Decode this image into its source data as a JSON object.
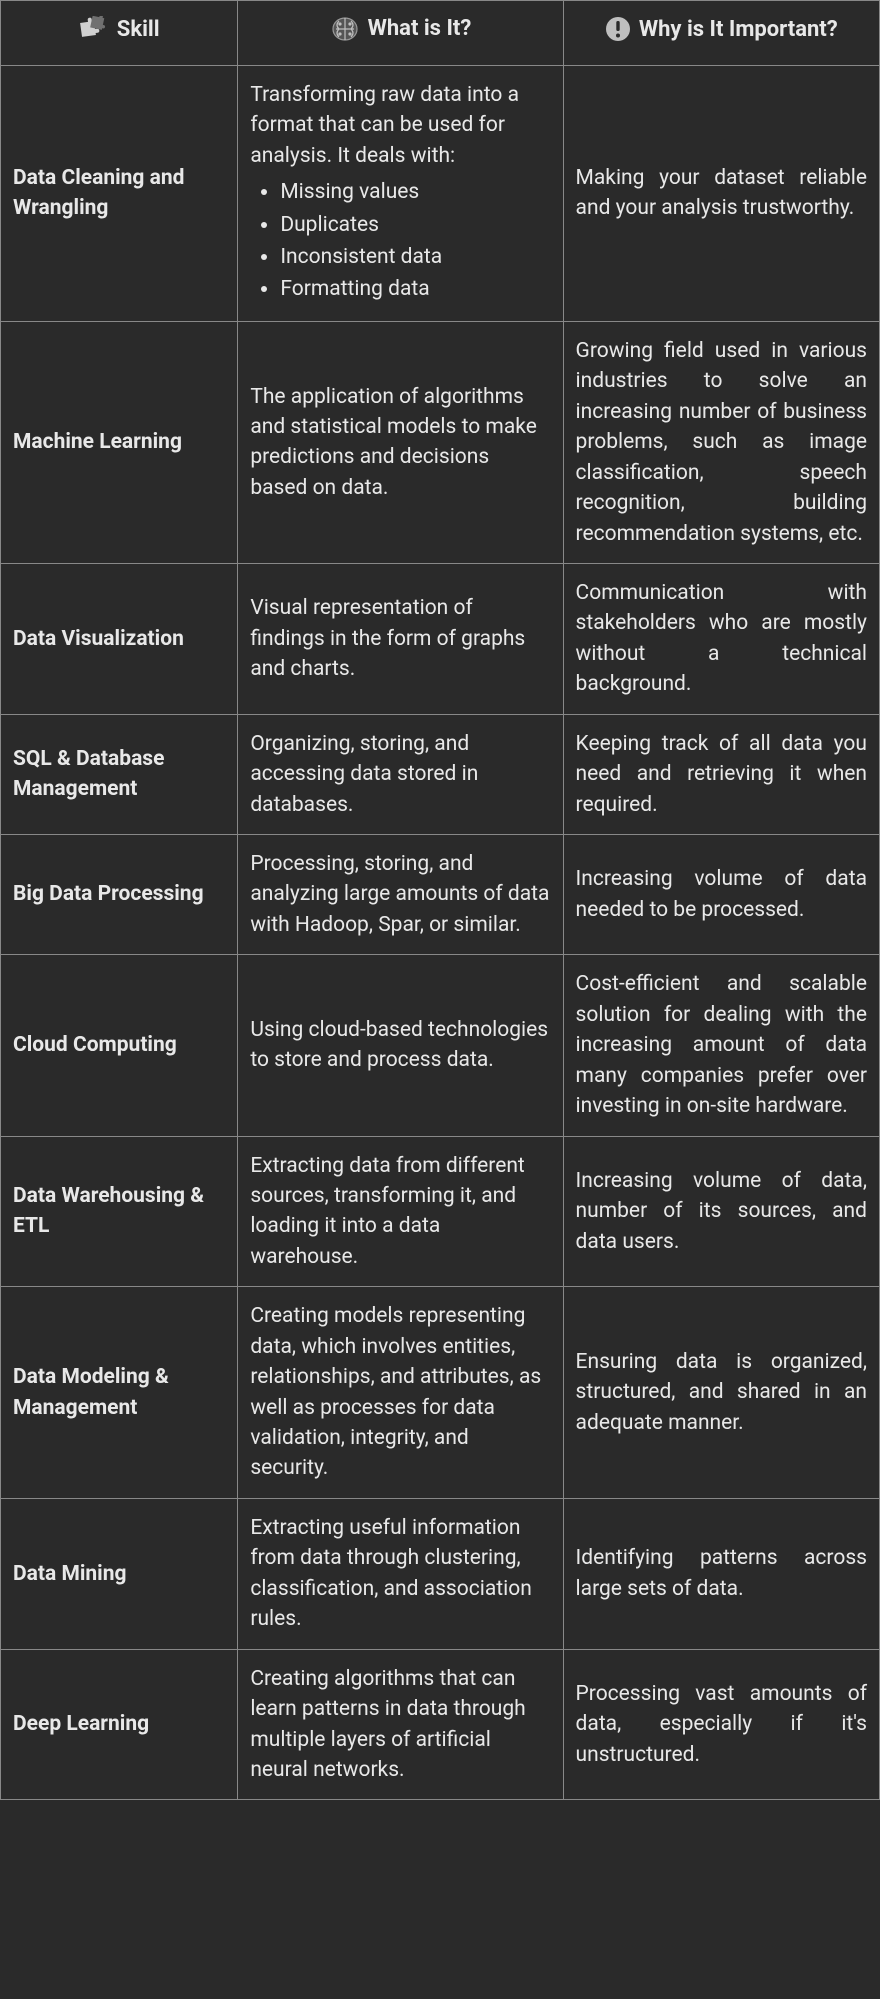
{
  "colors": {
    "background": "#2a2a2a",
    "text": "#e8e8e8",
    "border": "#888888",
    "icon_fill": "#d0d0d0",
    "excl_bg": "#bfbfbf",
    "excl_fg": "#2a2a2a"
  },
  "columns": [
    {
      "key": "skill",
      "label": "Skill",
      "icon": "puzzle"
    },
    {
      "key": "what",
      "label": "What is It?",
      "icon": "brain"
    },
    {
      "key": "why",
      "label": "Why is It Important?",
      "icon": "exclaim"
    }
  ],
  "rows": [
    {
      "skill": "Data Cleaning and Wrangling",
      "what_intro": "Transforming raw data into a format that can be used for analysis. It deals with:",
      "what_bullets": [
        "Missing values",
        "Duplicates",
        "Inconsistent data",
        "Formatting data"
      ],
      "why": "Making your dataset reliable and your analysis trustworthy."
    },
    {
      "skill": "Machine Learning",
      "what": "The application of algorithms and statistical models to make predictions and decisions based on data.",
      "why": "Growing field used in various industries to solve an increasing number of business problems, such as image classification, speech recognition, building recommendation systems, etc."
    },
    {
      "skill": "Data Visualization",
      "what": "Visual representation of findings in the form of graphs and charts.",
      "why": "Communication with stakeholders who are mostly without a technical background."
    },
    {
      "skill": "SQL & Database Management",
      "what": "Organizing, storing, and accessing data stored in databases.",
      "why": "Keeping track of all data you need and retrieving it when required."
    },
    {
      "skill": "Big Data Processing",
      "what": "Processing, storing, and analyzing large amounts of data with Hadoop, Spar, or similar.",
      "why": "Increasing volume of data needed to be processed."
    },
    {
      "skill": "Cloud Computing",
      "what": "Using cloud-based technologies to store and process data.",
      "why": "Cost-efficient and scalable solution for dealing with the increasing amount of data many companies prefer over investing in on-site hardware."
    },
    {
      "skill": "Data Warehousing & ETL",
      "what": "Extracting data from different sources, transforming it, and loading it into a data warehouse.",
      "why": "Increasing volume of data, number of its sources, and data users."
    },
    {
      "skill": "Data Modeling & Management",
      "what": "Creating models representing data, which involves entities, relationships, and attributes, as well as processes for data validation, integrity, and security.",
      "why": "Ensuring data is organized, structured, and shared in an adequate manner."
    },
    {
      "skill": "Data Mining",
      "what": "Extracting useful information from data through clustering, classification, and association rules.",
      "why": "Identifying patterns across large sets of data."
    },
    {
      "skill": "Deep Learning",
      "what": "Creating algorithms that can learn patterns in data through multiple layers of artificial neural networks.",
      "why": "Processing vast amounts of data, especially if it's unstructured."
    }
  ]
}
